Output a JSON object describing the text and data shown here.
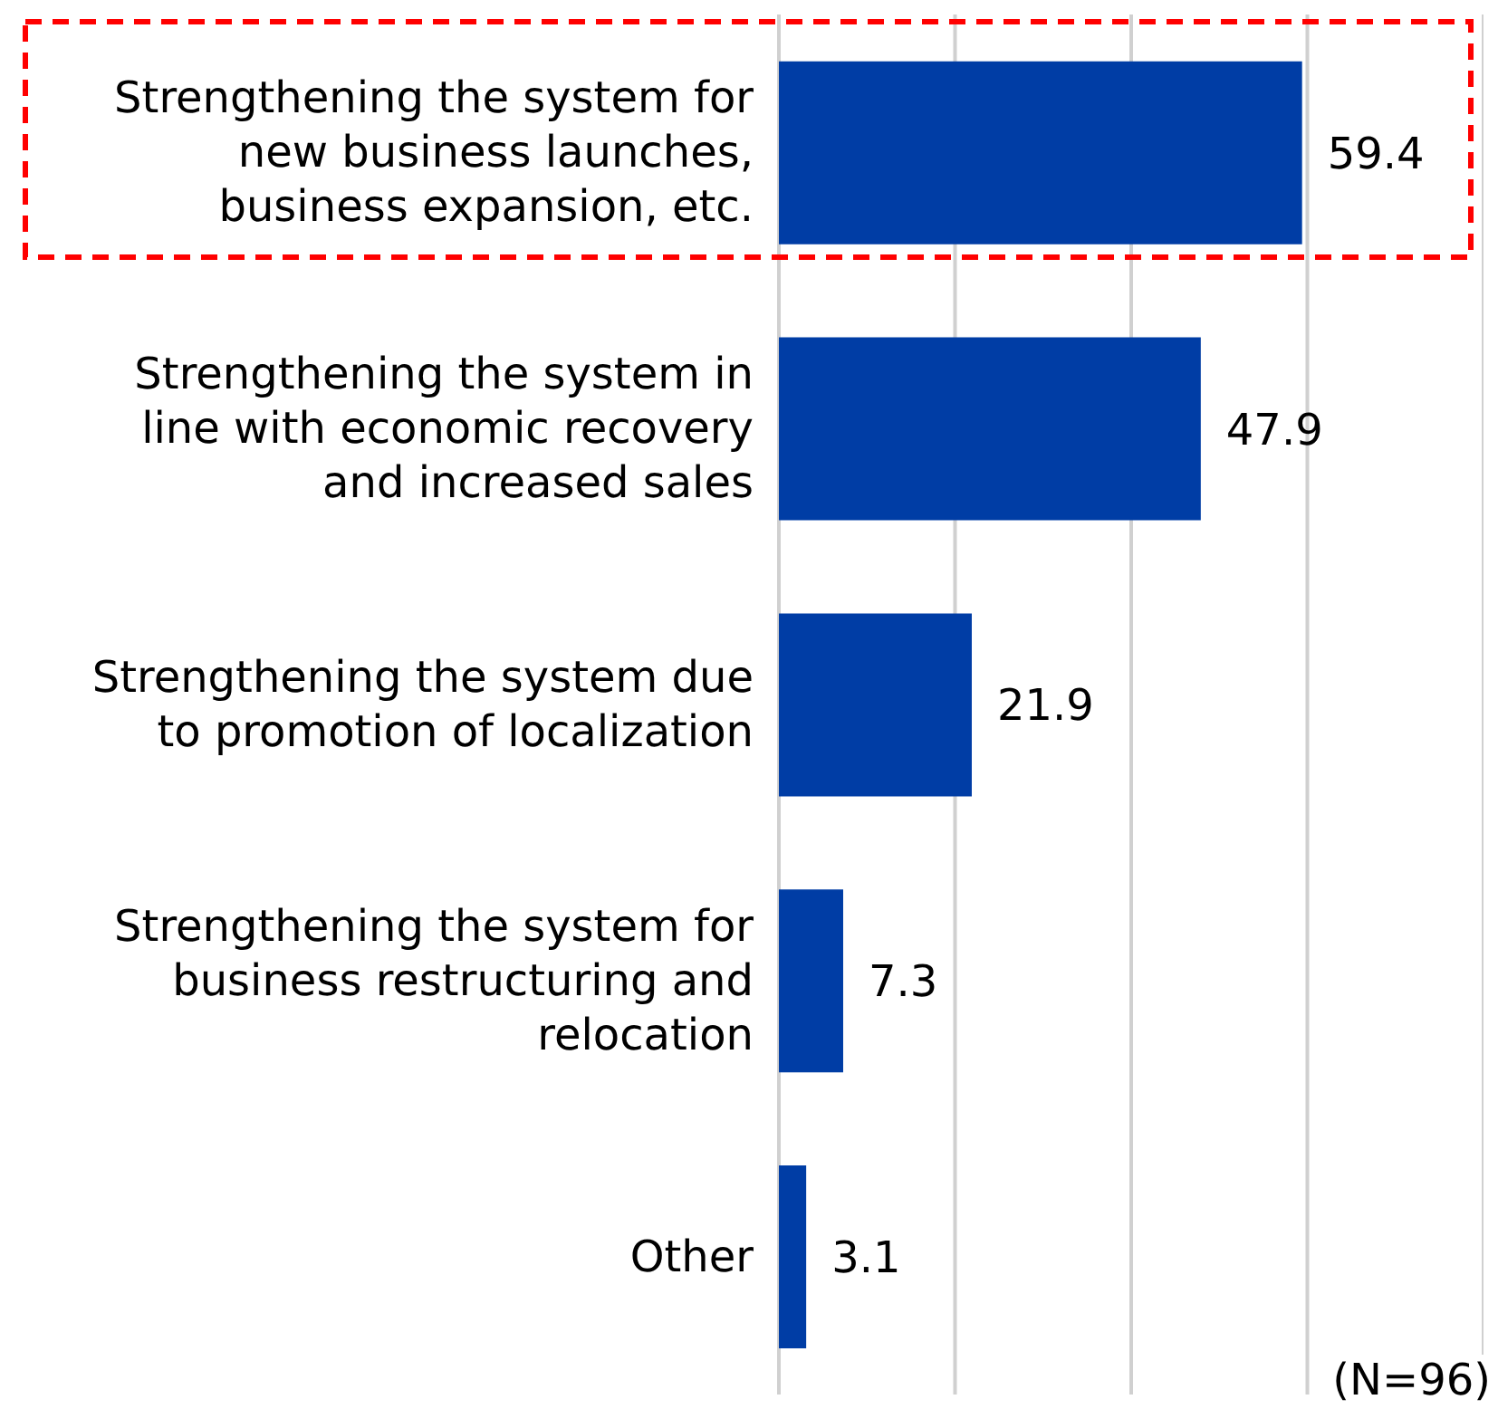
{
  "chart_data": {
    "type": "bar",
    "orientation": "horizontal",
    "categories": [
      "Strengthening the system for new business launches, business expansion, etc.",
      "Strengthening the system in line with economic recovery and increased sales",
      "Strengthening the system due to promotion of localization",
      "Strengthening the system for business restructuring and relocation",
      "Other"
    ],
    "values": [
      59.4,
      47.9,
      21.9,
      7.3,
      3.1
    ],
    "color": "#003da5",
    "xlim": [
      0,
      80
    ],
    "xticks": [
      {
        "value": 0,
        "label": null
      },
      {
        "value": 20,
        "label": null
      },
      {
        "value": 40,
        "label": null
      },
      {
        "value": 60,
        "label": null
      },
      {
        "value": 80,
        "label": null
      }
    ],
    "grid": "x",
    "data_labels": true,
    "tick_labels": "y",
    "annotations": [
      "(N=96)"
    ]
  }
}
